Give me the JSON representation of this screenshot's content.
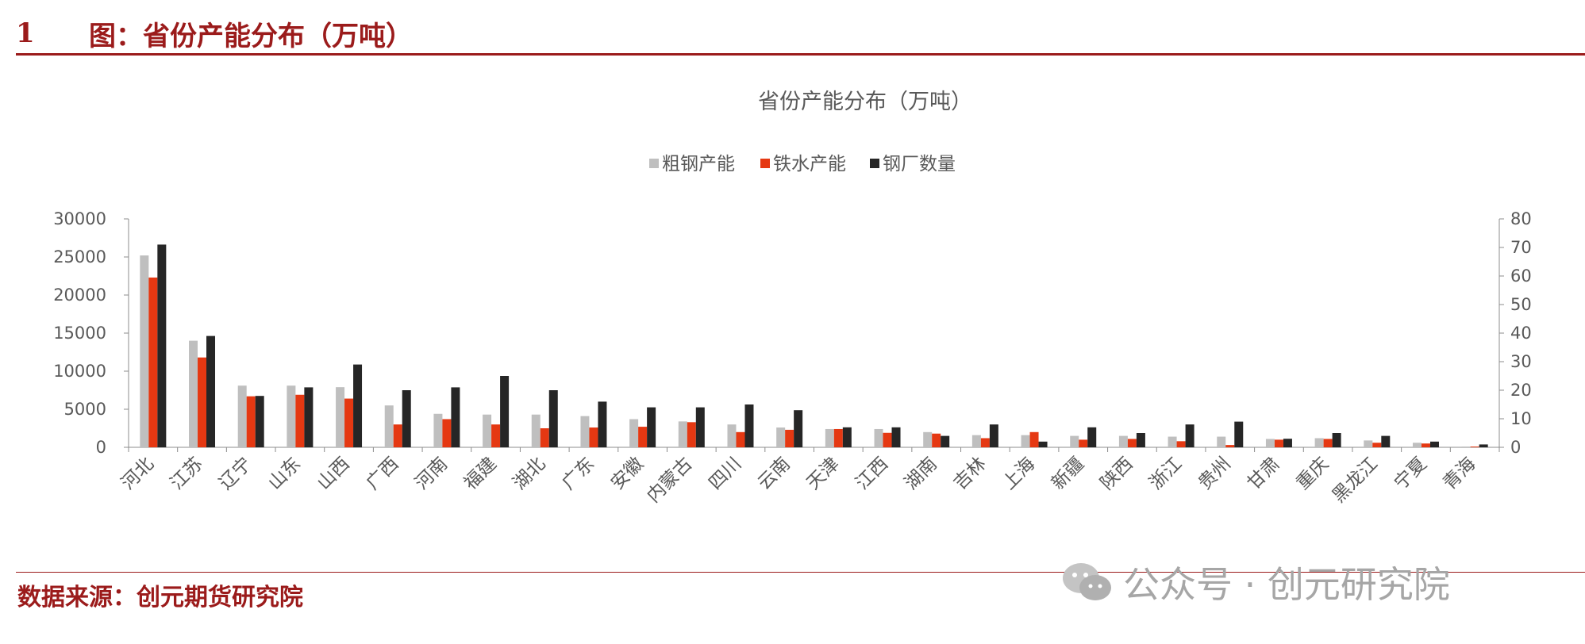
{
  "header": {
    "number": "1",
    "title": "图：省份产能分布（万吨）"
  },
  "source": "数据来源：创元期货研究院",
  "watermark": "公众号 · 创元研究院",
  "colors": {
    "crude_steel": "#bfbfbf",
    "hot_metal": "#e53812",
    "mills": "#262626",
    "brand_red": "#9b1b1b"
  },
  "chart_data": {
    "type": "bar",
    "title": "省份产能分布（万吨）",
    "legend_position": "top",
    "grid": false,
    "categories": [
      "河北",
      "江苏",
      "辽宁",
      "山东",
      "山西",
      "广西",
      "河南",
      "福建",
      "湖北",
      "广东",
      "安徽",
      "内蒙古",
      "四川",
      "云南",
      "天津",
      "江西",
      "湖南",
      "吉林",
      "上海",
      "新疆",
      "陕西",
      "浙江",
      "贵州",
      "甘肃",
      "重庆",
      "黑龙江",
      "宁夏",
      "青海"
    ],
    "series": [
      {
        "name": "粗钢产能",
        "axis": "left",
        "values": [
          25200,
          14000,
          8100,
          8100,
          7900,
          5500,
          4400,
          4300,
          4300,
          4100,
          3700,
          3400,
          3000,
          2600,
          2400,
          2400,
          2000,
          1600,
          1600,
          1500,
          1500,
          1400,
          1400,
          1100,
          1200,
          900,
          600,
          100
        ]
      },
      {
        "name": "铁水产能",
        "axis": "left",
        "values": [
          22300,
          11800,
          6700,
          6900,
          6400,
          3000,
          3700,
          3000,
          2500,
          2600,
          2700,
          3300,
          2000,
          2300,
          2400,
          1900,
          1800,
          1200,
          2000,
          1000,
          1100,
          800,
          300,
          1000,
          1100,
          600,
          500,
          100
        ]
      },
      {
        "name": "钢厂数量",
        "axis": "right",
        "values": [
          71,
          39,
          18,
          21,
          29,
          20,
          21,
          25,
          20,
          16,
          14,
          14,
          15,
          13,
          7,
          7,
          4,
          8,
          2,
          7,
          5,
          8,
          9,
          3,
          5,
          4,
          2,
          1
        ]
      }
    ],
    "y_left": {
      "min": 0,
      "max": 30000,
      "ticks": [
        0,
        5000,
        10000,
        15000,
        20000,
        25000,
        30000
      ]
    },
    "y_right": {
      "min": 0,
      "max": 80,
      "ticks": [
        0,
        10,
        20,
        30,
        40,
        50,
        60,
        70,
        80
      ]
    }
  }
}
